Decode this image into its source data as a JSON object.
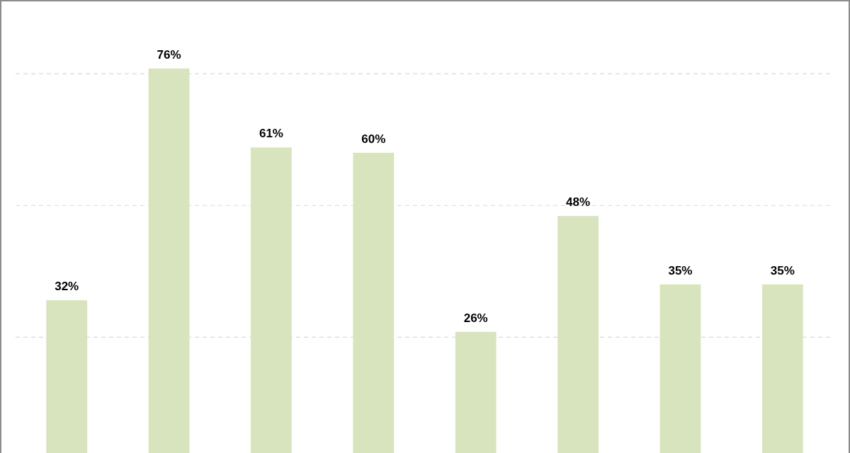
{
  "chart_data": {
    "type": "bar",
    "categories": [
      null,
      null,
      null,
      null,
      null,
      null,
      null,
      null
    ],
    "values": [
      32,
      76,
      61,
      60,
      26,
      48,
      35,
      35
    ],
    "color": "#d7e4bd",
    "data_labels": true,
    "value_labels": [
      "32%",
      "76%",
      "61%",
      "60%",
      "26%",
      "48%",
      "35%",
      "35%"
    ],
    "ylim": [
      3,
      89
    ],
    "yticks": [
      {
        "value": 25,
        "label": null
      },
      {
        "value": 50,
        "label": null
      },
      {
        "value": 75,
        "label": null
      }
    ],
    "grid": "y"
  }
}
